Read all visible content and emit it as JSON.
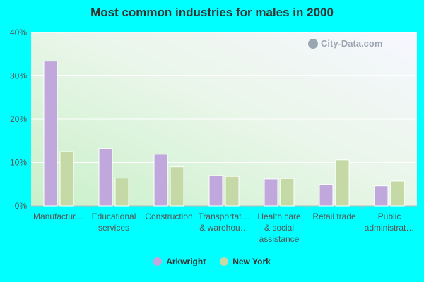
{
  "chart_data": {
    "type": "bar",
    "title": "Most common industries for males in 2000",
    "categories": [
      [
        "Manufactur…"
      ],
      [
        "Educational",
        "services"
      ],
      [
        "Construction"
      ],
      [
        "Transportat…",
        "& warehou…"
      ],
      [
        "Health care",
        "& social",
        "assistance"
      ],
      [
        "Retail trade"
      ],
      [
        "Public",
        "administrat…"
      ]
    ],
    "series": [
      {
        "name": "Arkwright",
        "color": "#c0a8dc",
        "values": [
          33.4,
          13.2,
          11.9,
          7.0,
          6.2,
          4.9,
          4.6
        ]
      },
      {
        "name": "New York",
        "color": "#c5d9a6",
        "values": [
          12.5,
          6.4,
          9.0,
          6.8,
          6.3,
          10.6,
          5.7
        ]
      }
    ],
    "yticks": [
      "0%",
      "10%",
      "20%",
      "30%",
      "40%"
    ],
    "ylim": [
      0,
      40
    ],
    "grid": true,
    "legend_position": "bottom"
  },
  "watermark": {
    "text": "City-Data.com",
    "icon": "city-data-logo-icon"
  }
}
